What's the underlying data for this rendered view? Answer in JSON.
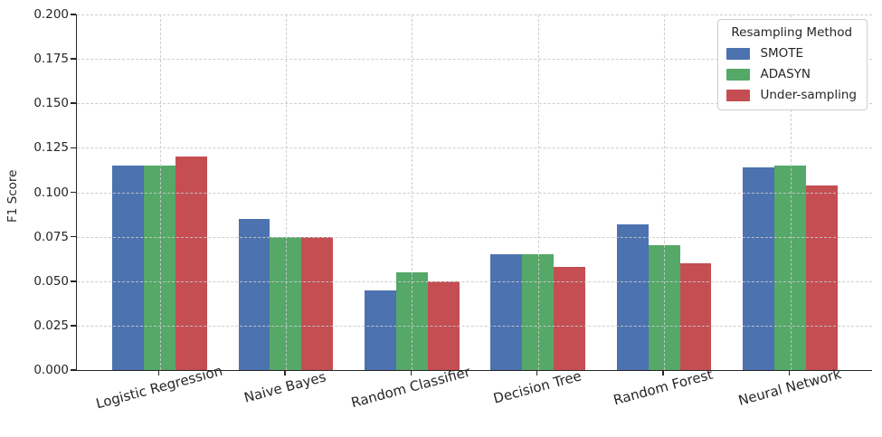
{
  "figure": {
    "background": "#ffffff",
    "text_color": "#262626",
    "grid_color": "#c9c9c9",
    "spine_color": "#262626"
  },
  "chart_data": {
    "type": "bar",
    "title": "",
    "xlabel": "",
    "ylabel": "F1 Score",
    "categories": [
      "Logistic Regression",
      "Naive Bayes",
      "Random Classifier",
      "Decision Tree",
      "Random Forest",
      "Neural Network"
    ],
    "series": [
      {
        "name": "SMOTE",
        "color": "#4C72B0",
        "values": [
          0.115,
          0.085,
          0.045,
          0.065,
          0.082,
          0.114
        ]
      },
      {
        "name": "ADASYN",
        "color": "#55A868",
        "values": [
          0.115,
          0.075,
          0.055,
          0.065,
          0.07,
          0.115
        ]
      },
      {
        "name": "Under-sampling",
        "color": "#C44E52",
        "values": [
          0.12,
          0.075,
          0.05,
          0.058,
          0.06,
          0.104
        ]
      }
    ],
    "ylim": [
      0,
      0.2
    ],
    "ytick_step": 0.025,
    "ytick_labels": [
      "0.000",
      "0.025",
      "0.050",
      "0.075",
      "0.100",
      "0.125",
      "0.150",
      "0.175",
      "0.200"
    ],
    "grid": {
      "horizontal": true,
      "vertical": true,
      "style": "dashed",
      "axisbelow": false
    },
    "legend": {
      "title": "Resampling Method",
      "position": "upper-right"
    }
  }
}
